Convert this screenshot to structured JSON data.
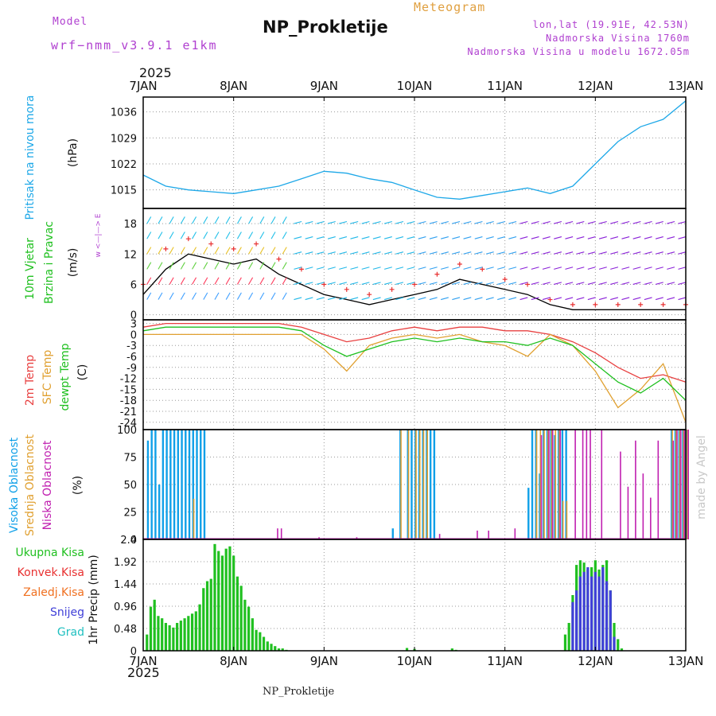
{
  "header": {
    "model_label": "Model",
    "model_value": "wrf−nmm_v3.9.1  e1km",
    "product": "Meteogram",
    "station": "NP_Prokletije",
    "coords": "lon,lat (19.91E, 42.53N)",
    "elevation": "Nadmorska Visina 1760m",
    "model_elevation": "Nadmorska Visina u modelu 1672.05m",
    "credit": "made by Angel",
    "footer": "NP_Prokletije"
  },
  "time_axis": {
    "year": "2025",
    "ticks": [
      "7JAN",
      "8JAN",
      "9JAN",
      "10JAN",
      "11JAN",
      "12JAN",
      "13JAN"
    ]
  },
  "colors": {
    "pressure": "#1ea8e8",
    "temp2m": "#e84040",
    "sfc": "#e0a030",
    "dewpt": "#20c020",
    "high_cloud": "#10a0e8",
    "mid_cloud": "#e0a030",
    "low_cloud": "#c020b0",
    "total_precip": "#20c020",
    "conv_precip": "#e83030",
    "frz_precip": "#f07020",
    "snow": "#4040d8",
    "hail": "#20c0c0",
    "gust": "#e83030"
  },
  "panels": {
    "pressure": {
      "label": "Pritisak na nivou mora",
      "unit": "(hPa)"
    },
    "wind": {
      "label1": "10m Vjetar",
      "label2": "Brzina i Pravac",
      "unit": "(m/s)",
      "compass": "w <—|—> E"
    },
    "temperature": {
      "label_2m": "2m Temp",
      "label_sfc": "SFC Temp",
      "label_dew": "dewpt Temp",
      "unit": "(C)"
    },
    "cloud": {
      "label_high": "Visoka Oblacnost",
      "label_mid": "Srednja Oblacnost",
      "label_low": "Niska Oblacnost",
      "unit": "(%)"
    },
    "precip": {
      "unit": "1hr Precip (mm)"
    }
  },
  "legend": {
    "total": "Ukupna Kisa",
    "conv": "Konvek.Kisa",
    "frz": "Zaledj.Kisa",
    "snow": "Snijeg",
    "hail": "Grad"
  },
  "chart_data": [
    {
      "type": "line",
      "title": "Pritisak na nivou mora",
      "ylabel": "(hPa)",
      "ylim": [
        1010,
        1040
      ],
      "yticks": [
        1015,
        1022,
        1029,
        1036
      ],
      "x_unit": "hours since 7JAN 00",
      "series": [
        {
          "x": [
            0,
            6,
            12,
            18,
            24,
            30,
            36,
            42,
            48,
            54,
            60,
            66,
            72,
            78,
            84,
            90,
            96,
            102,
            108,
            114,
            120,
            126,
            132,
            138,
            144
          ],
          "values": [
            1019,
            1016,
            1015,
            1014.5,
            1014,
            1015,
            1016,
            1018,
            1020,
            1019.5,
            1018,
            1017,
            1015,
            1013,
            1012.5,
            1013.5,
            1014.5,
            1015.5,
            1014,
            1016,
            1022,
            1028,
            1032,
            1034,
            1039
          ]
        }
      ]
    },
    {
      "type": "line",
      "title": "10m Vjetar Brzina i Pravac",
      "ylabel": "(m/s)",
      "ylim": [
        -1,
        21
      ],
      "yticks": [
        0,
        6,
        12,
        18
      ],
      "x_unit": "hours since 7JAN 00",
      "series": [
        {
          "x": [
            0,
            6,
            12,
            18,
            24,
            30,
            36,
            42,
            48,
            54,
            60,
            66,
            72,
            78,
            84,
            90,
            96,
            102,
            108,
            114,
            120,
            126,
            132,
            138,
            144
          ],
          "values": [
            4,
            9,
            12,
            11,
            10,
            11,
            8,
            6,
            4,
            3,
            2,
            3,
            4,
            5,
            7,
            6,
            5,
            4,
            2,
            1,
            1,
            1,
            1,
            1,
            1
          ]
        },
        {
          "name": "gust",
          "x": [
            0,
            6,
            12,
            18,
            24,
            30,
            36,
            42,
            48,
            54,
            60,
            66,
            72,
            78,
            84,
            90,
            96,
            102,
            108,
            114,
            120,
            126,
            132,
            138,
            144
          ],
          "values": [
            6,
            13,
            15,
            14,
            13,
            14,
            11,
            9,
            6,
            5,
            4,
            5,
            6,
            8,
            10,
            9,
            7,
            6,
            3,
            2,
            2,
            2,
            2,
            2,
            2
          ]
        }
      ]
    },
    {
      "type": "line",
      "title": "2m Temp / SFC Temp / dewpt Temp",
      "ylabel": "(C)",
      "ylim": [
        -26,
        4
      ],
      "yticks": [
        3,
        0,
        -3,
        -6,
        -9,
        -12,
        -15,
        -18,
        -21,
        -24
      ],
      "x_unit": "hours since 7JAN 00",
      "series": [
        {
          "name": "2m Temp",
          "x": [
            0,
            6,
            12,
            18,
            24,
            30,
            36,
            42,
            48,
            54,
            60,
            66,
            72,
            78,
            84,
            90,
            96,
            102,
            108,
            114,
            120,
            126,
            132,
            138,
            144
          ],
          "values": [
            2,
            3,
            3,
            3,
            3,
            3,
            3,
            2,
            0,
            -2,
            -1,
            1,
            2,
            1,
            2,
            2,
            1,
            1,
            0,
            -2,
            -5,
            -9,
            -12,
            -11,
            -13
          ]
        },
        {
          "name": "SFC Temp",
          "x": [
            0,
            6,
            12,
            18,
            24,
            30,
            36,
            42,
            48,
            54,
            60,
            66,
            72,
            78,
            84,
            90,
            96,
            102,
            108,
            114,
            120,
            126,
            132,
            138,
            144
          ],
          "values": [
            0,
            0,
            0,
            0,
            0,
            0,
            0,
            0,
            -4,
            -10,
            -3,
            -1,
            0,
            -1,
            0,
            -2,
            -3,
            -6,
            0,
            -3,
            -10,
            -20,
            -15,
            -8,
            -24
          ]
        },
        {
          "name": "dewpt Temp",
          "x": [
            0,
            6,
            12,
            18,
            24,
            30,
            36,
            42,
            48,
            54,
            60,
            66,
            72,
            78,
            84,
            90,
            96,
            102,
            108,
            114,
            120,
            126,
            132,
            138,
            144
          ],
          "values": [
            1,
            2,
            2,
            2,
            2,
            2,
            2,
            1,
            -3,
            -6,
            -4,
            -2,
            -1,
            -2,
            -1,
            -2,
            -2,
            -3,
            -1,
            -3,
            -8,
            -13,
            -16,
            -12,
            -18
          ]
        }
      ]
    },
    {
      "type": "bar",
      "title": "Visoka / Srednja / Niska Oblacnost",
      "ylabel": "(%)",
      "ylim": [
        0,
        100
      ],
      "yticks": [
        0,
        25,
        50,
        75,
        100
      ],
      "bar_x_hours": [
        1,
        2,
        3,
        4,
        5,
        6,
        7,
        8,
        9,
        10,
        11,
        12,
        13,
        14,
        15,
        16,
        35,
        36,
        46,
        56,
        66,
        68,
        70,
        71,
        72,
        73,
        74,
        75,
        76,
        77,
        78,
        88,
        91,
        98,
        100,
        102,
        103,
        104,
        105,
        106,
        107,
        108,
        109,
        110,
        111,
        112,
        114,
        116,
        117,
        118,
        121,
        126,
        128,
        130,
        132,
        134,
        136,
        140,
        141,
        142,
        143,
        144
      ],
      "series": [
        {
          "name": "Visoka Oblacnost",
          "values": [
            90,
            100,
            100,
            50,
            100,
            100,
            100,
            100,
            100,
            100,
            100,
            100,
            100,
            100,
            100,
            100,
            0,
            0,
            0,
            0,
            10,
            100,
            100,
            100,
            100,
            100,
            100,
            100,
            100,
            100,
            0,
            0,
            0,
            0,
            0,
            47,
            100,
            100,
            60,
            100,
            100,
            100,
            95,
            100,
            100,
            100,
            0,
            0,
            0,
            0,
            0,
            0,
            0,
            0,
            0,
            0,
            0,
            100,
            100,
            100,
            100,
            100
          ]
        },
        {
          "name": "Srednja Oblacnost",
          "values": [
            0,
            0,
            0,
            0,
            0,
            0,
            0,
            0,
            0,
            0,
            0,
            0,
            37,
            0,
            0,
            0,
            0,
            0,
            0,
            0,
            0,
            100,
            100,
            0,
            100,
            100,
            100,
            100,
            0,
            0,
            0,
            0,
            0,
            0,
            0,
            0,
            0,
            100,
            100,
            100,
            100,
            100,
            100,
            100,
            35,
            35,
            0,
            0,
            0,
            0,
            0,
            0,
            0,
            0,
            0,
            0,
            0,
            100,
            100,
            100,
            100,
            100
          ]
        },
        {
          "name": "Niska Oblacnost",
          "values": [
            0,
            0,
            0,
            0,
            0,
            0,
            0,
            0,
            0,
            0,
            0,
            0,
            0,
            0,
            0,
            0,
            10,
            10,
            2,
            2,
            0,
            0,
            0,
            0,
            0,
            0,
            0,
            0,
            0,
            0,
            5,
            8,
            8,
            10,
            0,
            0,
            0,
            0,
            95,
            0,
            100,
            100,
            0,
            100,
            0,
            0,
            100,
            100,
            100,
            100,
            100,
            80,
            48,
            90,
            60,
            38,
            90,
            90,
            100,
            100,
            100,
            100
          ]
        }
      ]
    },
    {
      "type": "bar",
      "title": "1hr Precip",
      "ylabel": "1hr Precip (mm)",
      "ylim": [
        0,
        2.4
      ],
      "yticks": [
        0,
        0.48,
        0.96,
        1.44,
        1.92,
        2.4
      ],
      "x_unit": "hours since 7JAN 00",
      "series": [
        {
          "name": "Ukupna Kisa",
          "x": [
            1,
            2,
            3,
            4,
            5,
            6,
            7,
            8,
            9,
            10,
            11,
            12,
            13,
            14,
            15,
            16,
            17,
            18,
            19,
            20,
            21,
            22,
            23,
            24,
            25,
            26,
            27,
            28,
            29,
            30,
            31,
            32,
            33,
            34,
            35,
            36,
            37,
            38,
            70,
            72,
            82,
            83,
            112,
            113,
            114,
            115,
            116,
            117,
            118,
            119,
            120,
            121,
            122,
            123,
            124,
            125,
            126,
            127
          ],
          "values": [
            0.35,
            0.95,
            1.1,
            0.75,
            0.7,
            0.6,
            0.55,
            0.5,
            0.6,
            0.65,
            0.7,
            0.75,
            0.8,
            0.85,
            1.0,
            1.35,
            1.5,
            1.55,
            2.3,
            2.15,
            2.05,
            2.2,
            2.25,
            2.05,
            1.6,
            1.4,
            1.1,
            0.95,
            0.7,
            0.45,
            0.4,
            0.3,
            0.2,
            0.15,
            0.1,
            0.05,
            0.05,
            0.02,
            0.06,
            0.04,
            0.05,
            0.02,
            0.35,
            0.6,
            1.2,
            1.85,
            1.95,
            1.9,
            1.75,
            1.8,
            1.95,
            1.75,
            1.85,
            1.95,
            1.3,
            0.6,
            0.25,
            0.05
          ]
        },
        {
          "name": "Snijeg",
          "x": [
            114,
            115,
            116,
            117,
            118,
            119,
            120,
            121,
            122,
            123,
            124,
            125
          ],
          "values": [
            1.05,
            1.3,
            1.6,
            1.7,
            1.8,
            1.6,
            1.7,
            1.6,
            1.8,
            1.5,
            1.3,
            0.3
          ]
        }
      ]
    }
  ]
}
